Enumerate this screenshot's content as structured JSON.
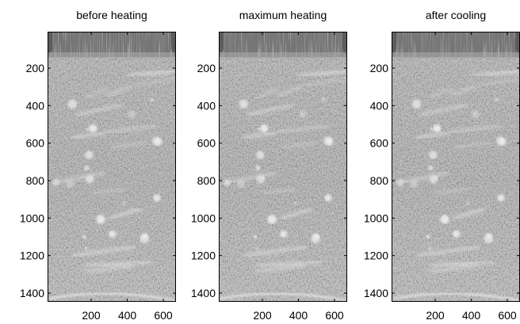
{
  "figure": {
    "panels": [
      {
        "title": "before heating"
      },
      {
        "title": "maximum heating"
      },
      {
        "title": "after cooling"
      }
    ],
    "y_ticks": [
      "200",
      "400",
      "600",
      "800",
      "1000",
      "1200",
      "1400"
    ],
    "x_ticks": [
      "200",
      "400",
      "600"
    ],
    "colors": {
      "background": "#ffffff",
      "speckle_base": "#a8a8a8",
      "speckle_light": "#e6e6e6",
      "speckle_dark": "#5a5a5a",
      "top_band": "#cfcfcf",
      "axis": "#000000"
    },
    "image_content": "grayscale ultrasound B-mode speckle, bright horizontal streaks"
  }
}
